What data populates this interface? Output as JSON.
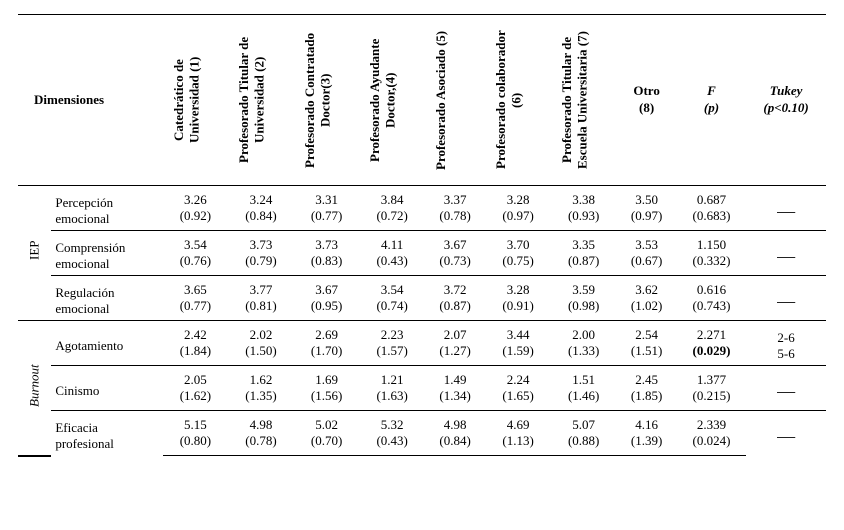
{
  "columns": {
    "dimensiones": "Dimensiones",
    "headers": [
      "Catedrático de\nUniversidad (1)",
      "Profesorado Titular de\nUniversidad (2)",
      "Profesorado Contratado\nDoctor(3)",
      "Profesorado Ayudante\nDoctor,(4)",
      "Profesorado Asociado\n(5)",
      "Profesorado\ncolaborador (6)",
      "Profesorado Titular de\nEscuela Universitaria (7)"
    ],
    "otro": "Otro\n(8)",
    "F": "F\n(p)",
    "tukey": "Tukey\n(p<0.10)"
  },
  "groups": [
    {
      "label": "IEP",
      "italic": false,
      "rows": [
        {
          "label": "Percepción\nemocional",
          "vals": [
            "3.26",
            "3.24",
            "3.31",
            "3.84",
            "3.37",
            "3.28",
            "3.38",
            "3.50"
          ],
          "parens": [
            "(0.92)",
            "(0.84)",
            "(0.77)",
            "(0.72)",
            "(0.78)",
            "(0.97)",
            "(0.93)",
            "(0.97)"
          ],
          "F": "0.687",
          "p": "(0.683)",
          "pBold": false,
          "tukey": "—"
        },
        {
          "label": "Comprensión\nemocional",
          "vals": [
            "3.54",
            "3.73",
            "3.73",
            "4.11",
            "3.67",
            "3.70",
            "3.35",
            "3.53"
          ],
          "parens": [
            "(0.76)",
            "(0.79)",
            "(0.83)",
            "(0.43)",
            "(0.73)",
            "(0.75)",
            "(0.87)",
            "(0.67)"
          ],
          "F": "1.150",
          "p": "(0.332)",
          "pBold": false,
          "tukey": "—"
        },
        {
          "label": "Regulación\nemocional",
          "vals": [
            "3.65",
            "3.77",
            "3.67",
            "3.54",
            "3.72",
            "3.28",
            "3.59",
            "3.62"
          ],
          "parens": [
            "(0.77)",
            "(0.81)",
            "(0.95)",
            "(0.74)",
            "(0.87)",
            "(0.91)",
            "(0.98)",
            "(1.02)"
          ],
          "F": "0.616",
          "p": "(0.743)",
          "pBold": false,
          "tukey": "—"
        }
      ]
    },
    {
      "label": "Burnout",
      "italic": true,
      "rows": [
        {
          "label": "Agotamiento",
          "vals": [
            "2.42",
            "2.02",
            "2.69",
            "2.23",
            "2.07",
            "3.44",
            "2.00",
            "2.54"
          ],
          "parens": [
            "(1.84)",
            "(1.50)",
            "(1.70)",
            "(1.57)",
            "(1.27)",
            "(1.59)",
            "(1.33)",
            "(1.51)"
          ],
          "F": "2.271",
          "p": "(0.029)",
          "pBold": true,
          "tukey": "2-6\n5-6"
        },
        {
          "label": "Cinismo",
          "vals": [
            "2.05",
            "1.62",
            "1.69",
            "1.21",
            "1.49",
            "2.24",
            "1.51",
            "2.45"
          ],
          "parens": [
            "(1.62)",
            "(1.35)",
            "(1.56)",
            "(1.63)",
            "(1.34)",
            "(1.65)",
            "(1.46)",
            "(1.85)"
          ],
          "F": "1.377",
          "p": "(0.215)",
          "pBold": false,
          "tukey": "—"
        },
        {
          "label": "Eficacia\nprofesional",
          "vals": [
            "5.15",
            "4.98",
            "5.02",
            "5.32",
            "4.98",
            "4.69",
            "5.07",
            "4.16"
          ],
          "parens": [
            "(0.80)",
            "(0.78)",
            "(0.70)",
            "(0.43)",
            "(0.84)",
            "(1.13)",
            "(0.88)",
            "(1.39)"
          ],
          "F": "2.339",
          "p": "(0.024)",
          "pBold": false,
          "tukey": "—"
        }
      ]
    }
  ],
  "style": {
    "dash": "—"
  }
}
